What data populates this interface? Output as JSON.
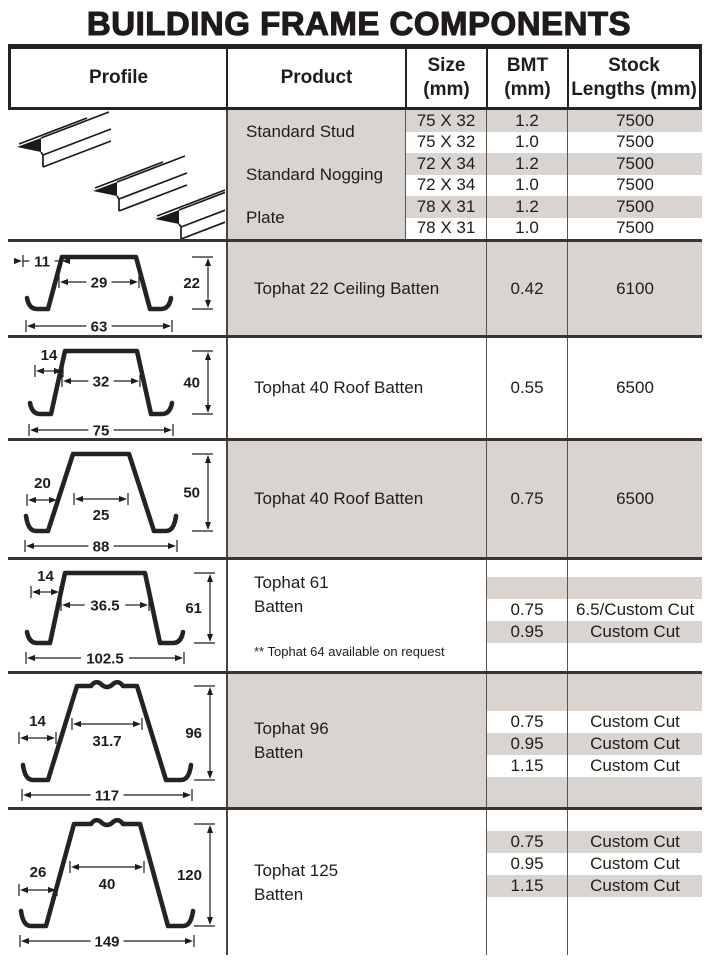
{
  "title": "BUILDING FRAME COMPONENTS",
  "colors": {
    "shade": "#d9d4d0",
    "separator": "#3a3430",
    "header_border": "#27221f",
    "text": "#1d1d1b"
  },
  "header": {
    "columns": [
      "Profile",
      "Product",
      "Size\n(mm)",
      "BMT\n(mm)",
      "Stock\nLengths (mm)"
    ]
  },
  "group": {
    "products": [
      "Standard Stud",
      "Standard Nogging",
      "Plate"
    ],
    "subrows": [
      {
        "size": "75 X 32",
        "bmt": "1.2",
        "stock": "7500"
      },
      {
        "size": "75 X 32",
        "bmt": "1.0",
        "stock": "7500"
      },
      {
        "size": "72 X 34",
        "bmt": "1.2",
        "stock": "7500"
      },
      {
        "size": "72 X 34",
        "bmt": "1.0",
        "stock": "7500"
      },
      {
        "size": "78 X 31",
        "bmt": "1.2",
        "stock": "7500"
      },
      {
        "size": "78 X 31",
        "bmt": "1.0",
        "stock": "7500"
      }
    ]
  },
  "rows": [
    {
      "product": "Tophat 22 Ceiling Batten",
      "bmt": "0.42",
      "stock": "6100",
      "profile": {
        "lip": "11",
        "top": "29",
        "height": "22",
        "bottom": "63"
      }
    },
    {
      "product": "Tophat 40 Roof Batten",
      "bmt": "0.55",
      "stock": "6500",
      "profile": {
        "lip": "14",
        "top": "32",
        "height": "40",
        "bottom": "75"
      }
    },
    {
      "product": "Tophat 40 Roof Batten",
      "bmt": "0.75",
      "stock": "6500",
      "profile": {
        "lip": "20",
        "top": "25",
        "height": "50",
        "bottom": "88"
      }
    },
    {
      "product_line1": "Tophat 61",
      "product_line2": "Batten",
      "note": "** Tophat 64 available on request",
      "entries": [
        {
          "bmt": "0.75",
          "stock": "6.5/Custom Cut"
        },
        {
          "bmt": "0.95",
          "stock": "Custom Cut"
        }
      ],
      "profile": {
        "lip": "14",
        "top": "36.5",
        "height": "61",
        "bottom": "102.5"
      }
    },
    {
      "product_line1": "Tophat 96",
      "product_line2": "Batten",
      "entries": [
        {
          "bmt": "0.75",
          "stock": "Custom Cut"
        },
        {
          "bmt": "0.95",
          "stock": "Custom Cut"
        },
        {
          "bmt": "1.15",
          "stock": "Custom Cut"
        }
      ],
      "profile": {
        "lip": "14",
        "top": "31.7",
        "height": "96",
        "bottom": "117"
      }
    },
    {
      "product_line1": "Tophat 125",
      "product_line2": "Batten",
      "entries": [
        {
          "bmt": "0.75",
          "stock": "Custom Cut"
        },
        {
          "bmt": "0.95",
          "stock": "Custom Cut"
        },
        {
          "bmt": "1.15",
          "stock": "Custom Cut"
        }
      ],
      "profile": {
        "lip": "26",
        "top": "40",
        "height": "120",
        "bottom": "149"
      }
    }
  ]
}
